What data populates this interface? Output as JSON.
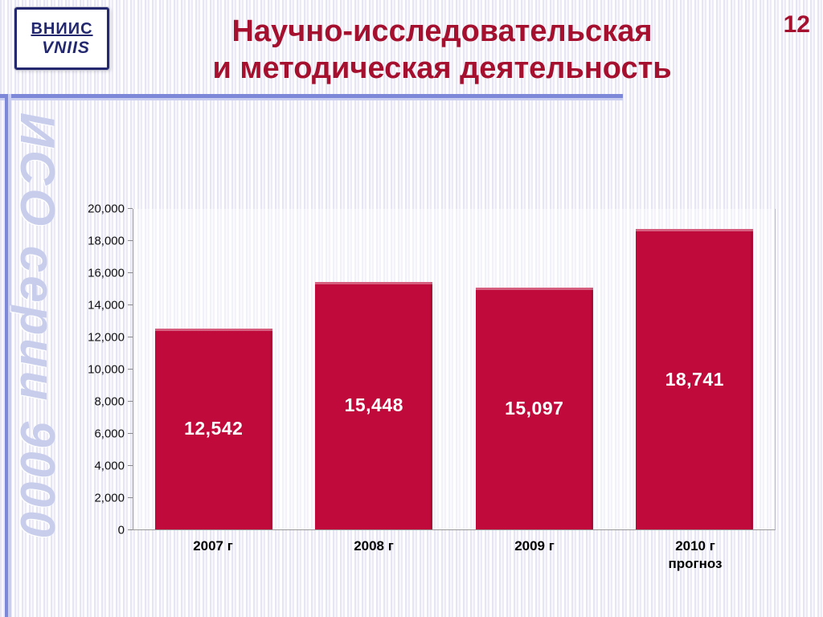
{
  "slide": {
    "page_number": "12",
    "title_line1": "Научно-исследовательская",
    "title_line2": "и методическая деятельность",
    "logo": {
      "line1": "ВНИИС",
      "line2": "VNIIS"
    },
    "side_text": "ИСО серии 9000"
  },
  "colors": {
    "title_red": "#a5102f",
    "bar_crimson": "#c10a3c",
    "accent_blue": "#7d88d8",
    "watermark_blue": "#c7cdeb"
  },
  "chart_data": {
    "type": "bar",
    "title": "",
    "xlabel": "",
    "ylabel": "",
    "categories": [
      "2007 г",
      "2008 г",
      "2009 г",
      "2010 г\nпрогноз"
    ],
    "values": [
      12542,
      15448,
      15097,
      18741
    ],
    "ylim": [
      0,
      20000
    ],
    "ytick_step": 2000,
    "bar_color": "#c10a3c",
    "legend": "none",
    "grid": "off",
    "data_labels": true
  }
}
